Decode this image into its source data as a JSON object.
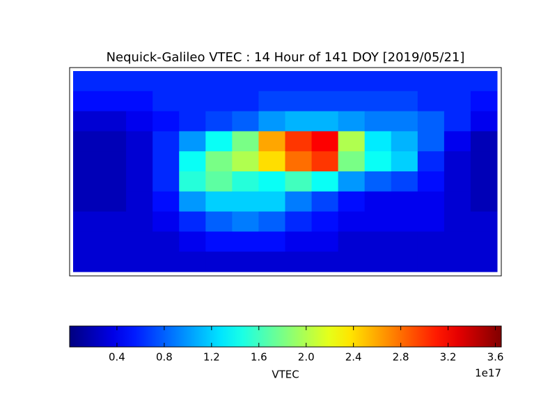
{
  "chart_data": {
    "type": "heatmap",
    "title": "Nequick-Galileo VTEC : 14 Hour of 141 DOY [2019/05/21]",
    "colormap": "jet",
    "xlim": [
      -180,
      180
    ],
    "ylim": [
      -90,
      90
    ],
    "values": [
      [
        0.6,
        0.6,
        0.6,
        0.6,
        0.6,
        0.6,
        0.6,
        0.6,
        0.6,
        0.6,
        0.6,
        0.6,
        0.6,
        0.6,
        0.6,
        0.6
      ],
      [
        0.5,
        0.5,
        0.5,
        0.6,
        0.6,
        0.6,
        0.6,
        0.7,
        0.7,
        0.7,
        0.7,
        0.7,
        0.7,
        0.6,
        0.6,
        0.5
      ],
      [
        0.3,
        0.3,
        0.4,
        0.5,
        0.6,
        0.7,
        0.8,
        1.0,
        1.1,
        1.1,
        1.0,
        0.9,
        0.9,
        0.8,
        0.6,
        0.4
      ],
      [
        0.2,
        0.2,
        0.3,
        0.6,
        1.0,
        1.4,
        1.8,
        2.6,
        3.0,
        3.2,
        2.0,
        1.3,
        1.1,
        0.8,
        0.4,
        0.2
      ],
      [
        0.2,
        0.2,
        0.3,
        0.6,
        1.4,
        1.8,
        2.0,
        2.4,
        2.8,
        3.0,
        1.8,
        1.4,
        1.2,
        0.6,
        0.3,
        0.2
      ],
      [
        0.2,
        0.2,
        0.3,
        0.6,
        1.5,
        1.7,
        1.5,
        1.4,
        1.6,
        1.4,
        1.0,
        0.8,
        0.7,
        0.5,
        0.3,
        0.2
      ],
      [
        0.2,
        0.2,
        0.3,
        0.5,
        1.0,
        1.2,
        1.2,
        1.2,
        0.9,
        0.7,
        0.5,
        0.4,
        0.4,
        0.4,
        0.3,
        0.2
      ],
      [
        0.3,
        0.3,
        0.3,
        0.4,
        0.6,
        0.8,
        0.9,
        0.8,
        0.6,
        0.5,
        0.4,
        0.4,
        0.4,
        0.4,
        0.3,
        0.3
      ],
      [
        0.3,
        0.3,
        0.3,
        0.3,
        0.4,
        0.5,
        0.5,
        0.5,
        0.4,
        0.4,
        0.3,
        0.3,
        0.3,
        0.3,
        0.3,
        0.3
      ],
      [
        0.3,
        0.3,
        0.3,
        0.3,
        0.3,
        0.3,
        0.3,
        0.3,
        0.3,
        0.3,
        0.3,
        0.3,
        0.3,
        0.3,
        0.3,
        0.3
      ]
    ],
    "colorbar": {
      "label": "VTEC",
      "lim": [
        0,
        3.65
      ],
      "ticks": [
        0.4,
        0.8,
        1.2,
        1.6,
        {
          "value": 2,
          "label": "2.0"
        },
        2.4,
        2.8,
        3.2,
        3.6
      ],
      "offset_label": "1e17"
    }
  }
}
